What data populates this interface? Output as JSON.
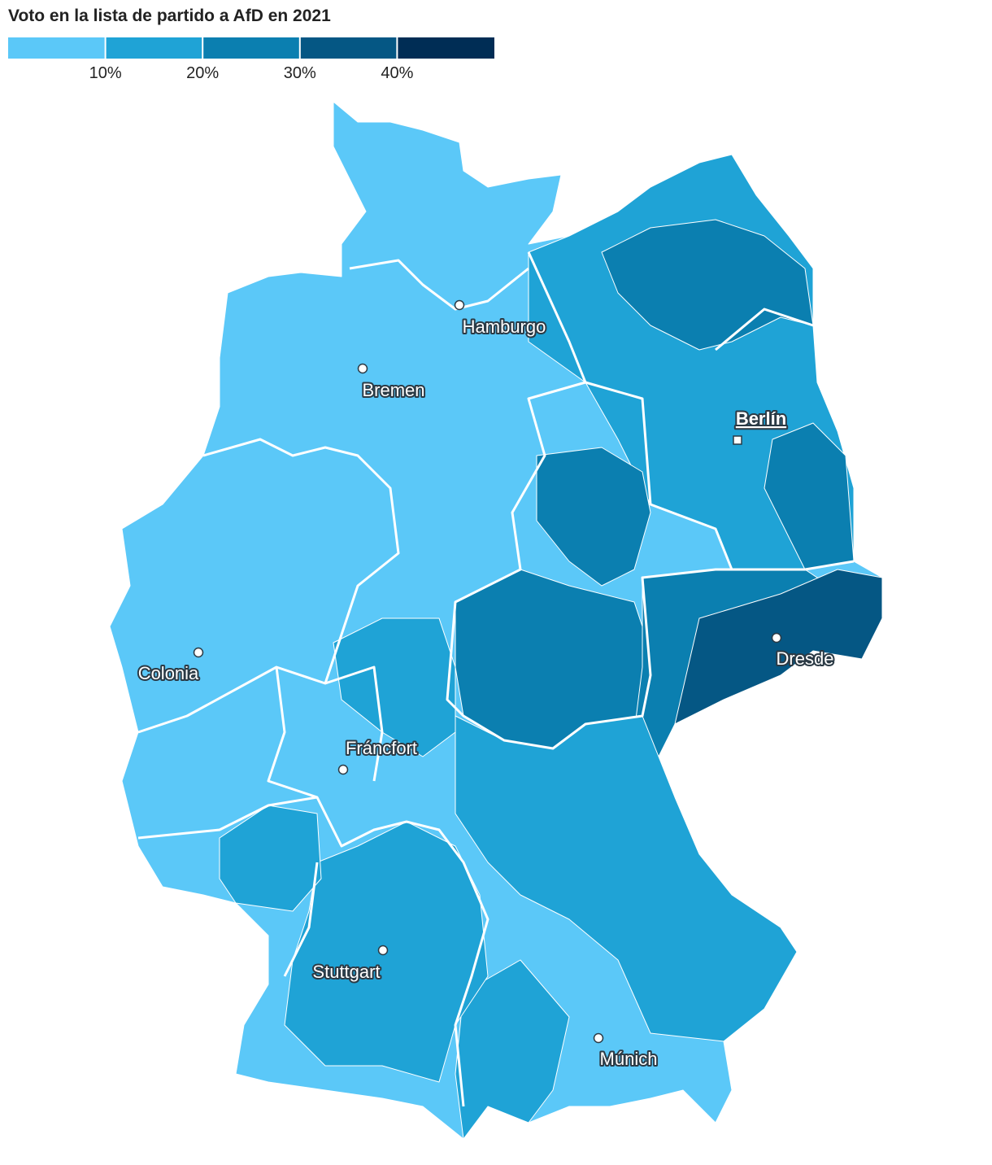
{
  "title": "Voto en la lista de partido a AfD en 2021",
  "legend": {
    "lim": [
      0,
      50
    ],
    "ticks": [
      {
        "value": 10,
        "label": "10%"
      },
      {
        "value": 20,
        "label": "20%"
      },
      {
        "value": 30,
        "label": "30%"
      },
      {
        "value": 40,
        "label": "40%"
      }
    ],
    "colors": [
      "#5bc8f8",
      "#1fa3d6",
      "#0b7fb0",
      "#055784",
      "#002d55"
    ]
  },
  "cities": [
    {
      "name": "Hamburgo"
    },
    {
      "name": "Bremen"
    },
    {
      "name": "Berlín"
    },
    {
      "name": "Colonia"
    },
    {
      "name": "Dresde"
    },
    {
      "name": "Fráncfort"
    },
    {
      "name": "Stuttgart"
    },
    {
      "name": "Múnich"
    }
  ]
}
